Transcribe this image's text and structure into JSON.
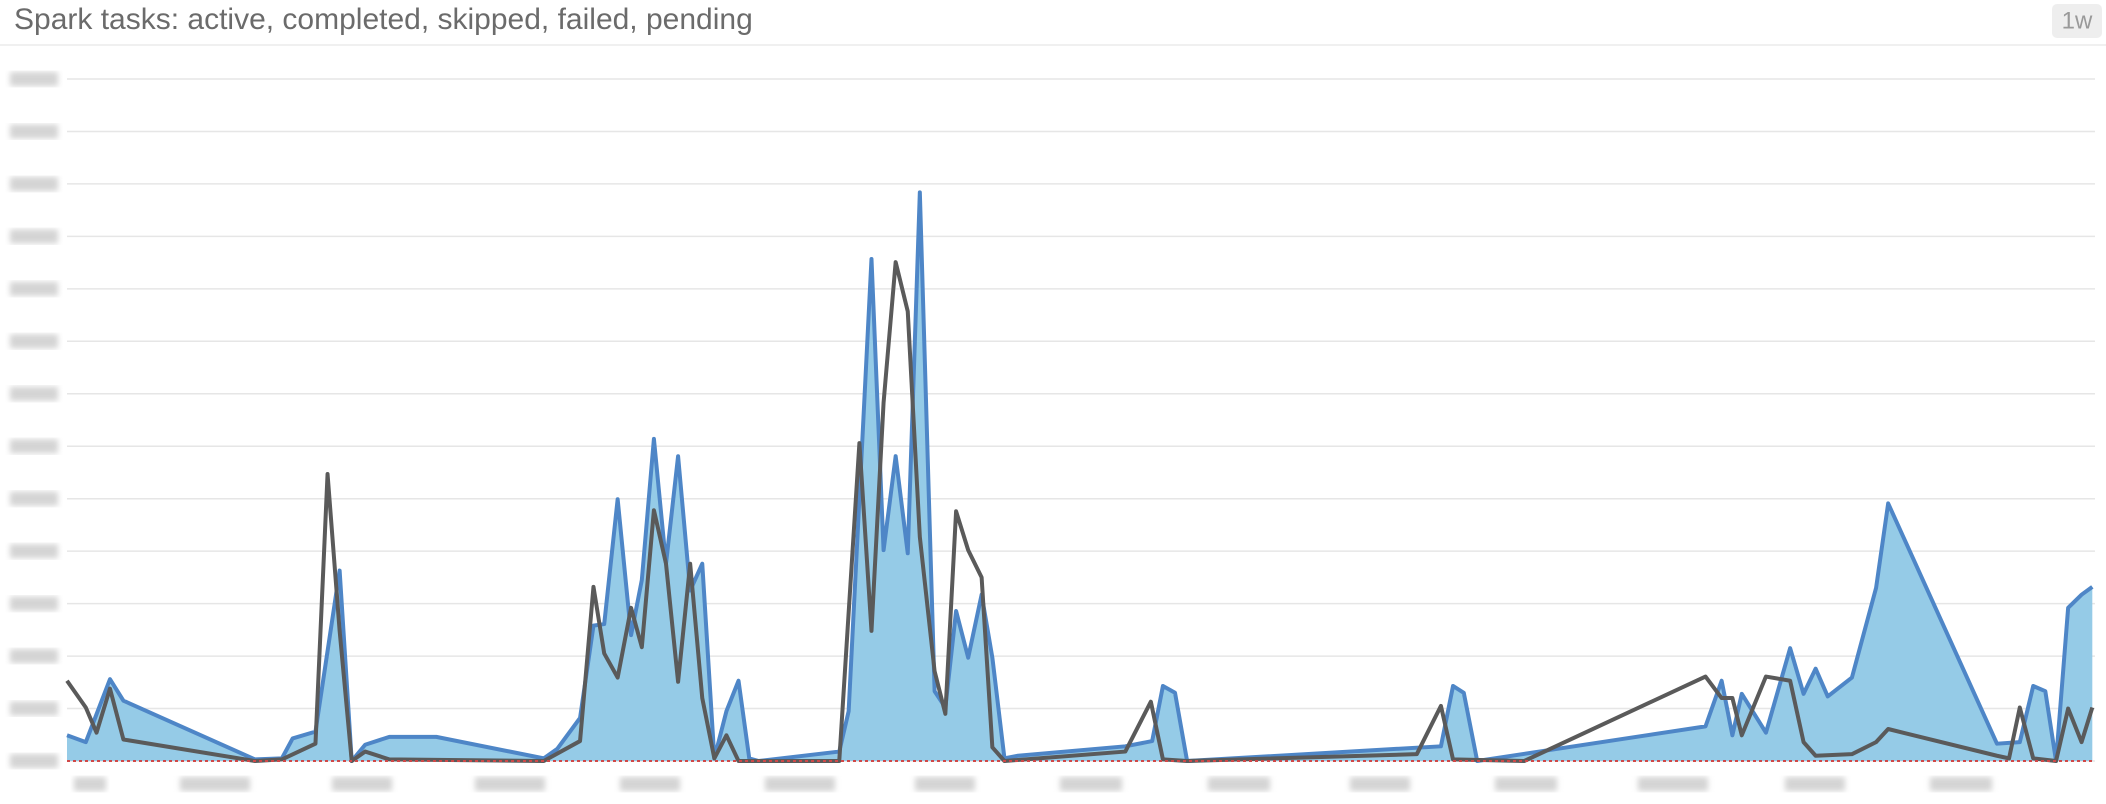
{
  "header": {
    "title": "Spark tasks: active, completed, skipped, failed, pending",
    "badge": "1w"
  },
  "chart_data": {
    "type": "area-line",
    "xlim": [
      0,
      1510
    ],
    "ylim": [
      0,
      13
    ],
    "yticks": [
      0,
      1,
      2,
      3,
      4,
      5,
      6,
      7,
      8,
      9,
      10,
      11,
      12,
      13
    ],
    "grid": true,
    "series": [
      {
        "color": "#4e86c7",
        "fill": "#95cbe7",
        "kind": "area",
        "x": [
          0,
          14,
          32,
          42,
          140,
          160,
          168,
          185,
          203,
          212,
          222,
          240,
          275,
          355,
          365,
          382,
          392,
          400,
          410,
          420,
          428,
          437,
          446,
          455,
          464,
          473,
          482,
          491,
          500,
          508,
          515,
          575,
          582,
          599,
          608,
          617,
          626,
          635,
          646,
          654,
          662,
          671,
          681,
          689,
          698,
          708,
          788,
          808,
          816,
          825,
          834,
          1023,
          1032,
          1040,
          1050,
          1220,
          1232,
          1240,
          1247,
          1265,
          1283,
          1293,
          1302,
          1311,
          1329,
          1347,
          1356,
          1437,
          1454,
          1464,
          1473,
          1481,
          1490,
          1500,
          1508
        ],
        "values": [
          0.49,
          0.36,
          1.56,
          1.15,
          0.03,
          0.05,
          0.43,
          0.56,
          3.63,
          0,
          0.31,
          0.46,
          0.46,
          0.05,
          0.23,
          0.82,
          2.58,
          2.61,
          4.99,
          2.4,
          3.45,
          6.14,
          3.76,
          5.81,
          3.25,
          3.76,
          0.05,
          0.95,
          1.53,
          0.05,
          0,
          0.18,
          0.95,
          9.57,
          4.02,
          5.81,
          3.96,
          10.84,
          1.33,
          1.02,
          2.86,
          1.97,
          3.17,
          1.97,
          0.05,
          0.1,
          0.28,
          0.38,
          1.43,
          1.3,
          0,
          0.28,
          1.43,
          1.3,
          0,
          0.66,
          1.53,
          0.49,
          1.28,
          0.54,
          2.15,
          1.28,
          1.76,
          1.23,
          1.59,
          3.3,
          4.91,
          0.33,
          0.36,
          1.43,
          1.33,
          0,
          2.92,
          3.17,
          3.32
        ]
      },
      {
        "color": "#5a5a5a",
        "kind": "line",
        "x": [
          0,
          14,
          22,
          32,
          42,
          140,
          160,
          185,
          194,
          203,
          212,
          222,
          240,
          355,
          382,
          392,
          400,
          410,
          420,
          428,
          437,
          446,
          455,
          464,
          473,
          482,
          491,
          500,
          575,
          590,
          599,
          608,
          617,
          626,
          635,
          646,
          654,
          662,
          671,
          681,
          689,
          698,
          788,
          807,
          816,
          834,
          1005,
          1023,
          1032,
          1085,
          1220,
          1232,
          1240,
          1247,
          1265,
          1283,
          1293,
          1302,
          1329,
          1347,
          1356,
          1437,
          1446,
          1454,
          1464,
          1481,
          1490,
          1500,
          1508
        ],
        "values": [
          1.53,
          1.02,
          0.54,
          1.38,
          0.41,
          0,
          0.03,
          0.33,
          5.47,
          2.48,
          0,
          0.18,
          0.03,
          0,
          0.38,
          3.32,
          2.05,
          1.59,
          2.92,
          2.17,
          4.78,
          3.76,
          1.51,
          3.76,
          1.2,
          0.05,
          0.49,
          0,
          0,
          6.06,
          2.48,
          6.83,
          9.51,
          8.57,
          4.27,
          1.71,
          0.9,
          4.76,
          4.02,
          3.5,
          0.26,
          0,
          0.18,
          1.13,
          0.03,
          0,
          0.13,
          1.05,
          0.03,
          0,
          1.61,
          1.2,
          1.2,
          0.49,
          1.61,
          1.53,
          0.36,
          0.1,
          0.13,
          0.36,
          0.61,
          0.1,
          0.05,
          1.02,
          0.05,
          0,
          1.0,
          0.36,
          1.02
        ]
      }
    ]
  }
}
